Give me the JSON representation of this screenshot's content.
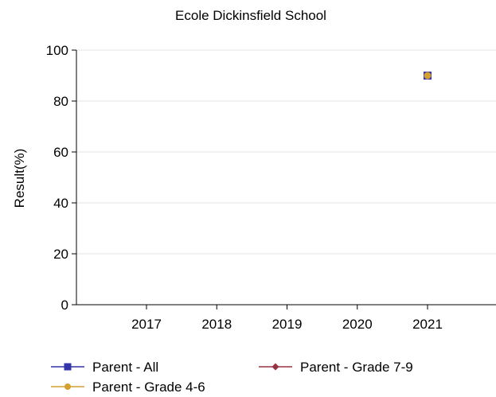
{
  "chart_data": {
    "type": "line",
    "title": "Ecole Dickinsfield School",
    "xlabel": "",
    "ylabel": "Result(%)",
    "categories": [
      "2017",
      "2018",
      "2019",
      "2020",
      "2021"
    ],
    "ylim": [
      0,
      100
    ],
    "yticks": [
      0,
      20,
      40,
      60,
      80,
      100
    ],
    "grid": "horizontal",
    "legend_position": "bottom",
    "series": [
      {
        "name": "Parent - All",
        "color": "#3333aa",
        "marker": "square",
        "values": [
          null,
          null,
          null,
          null,
          90
        ]
      },
      {
        "name": "Parent - Grade 7-9",
        "color": "#993344",
        "marker": "diamond",
        "values": [
          null,
          null,
          null,
          null,
          90
        ]
      },
      {
        "name": "Parent - Grade 4-6",
        "color": "#d4a030",
        "marker": "circle",
        "values": [
          null,
          null,
          null,
          null,
          90
        ]
      }
    ]
  }
}
